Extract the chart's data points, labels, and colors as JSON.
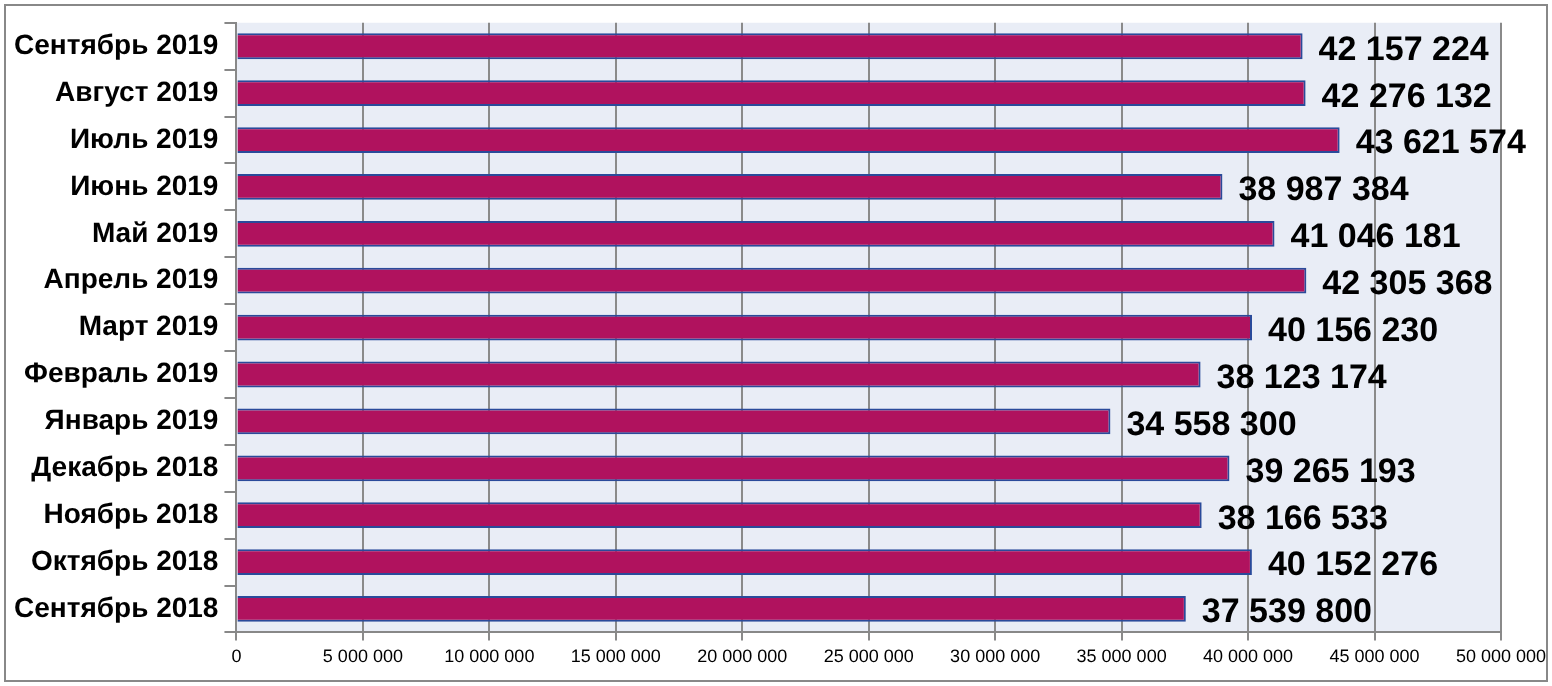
{
  "chart_data": {
    "type": "bar",
    "orientation": "horizontal",
    "categories": [
      "Сентябрь 2019",
      "Август 2019",
      "Июль 2019",
      "Июнь 2019",
      "Май 2019",
      "Апрель 2019",
      "Март 2019",
      "Февраль 2019",
      "Январь 2019",
      "Декабрь 2018",
      "Ноябрь 2018",
      "Октябрь 2018",
      "Сентябрь 2018"
    ],
    "values": [
      42157224,
      42276132,
      43621574,
      38987384,
      41046181,
      42305368,
      40156230,
      38123174,
      34558300,
      39265193,
      38166533,
      40152276,
      37539800
    ],
    "value_labels": [
      "42 157 224",
      "42 276 132",
      "43 621 574",
      "38 987 384",
      "41 046 181",
      "42 305 368",
      "40 156 230",
      "38 123 174",
      "34 558 300",
      "39 265 193",
      "38 166 533",
      "40 152 276",
      "37 539 800"
    ],
    "color": "#b0125e",
    "xlim": [
      0,
      50000000
    ],
    "xticks": [
      {
        "value": 0,
        "label": "0"
      },
      {
        "value": 5000000,
        "label": "5 000 000"
      },
      {
        "value": 10000000,
        "label": "10 000 000"
      },
      {
        "value": 15000000,
        "label": "15 000 000"
      },
      {
        "value": 20000000,
        "label": "20 000 000"
      },
      {
        "value": 25000000,
        "label": "25 000 000"
      },
      {
        "value": 30000000,
        "label": "30 000 000"
      },
      {
        "value": 35000000,
        "label": "35 000 000"
      },
      {
        "value": 40000000,
        "label": "40 000 000"
      },
      {
        "value": 45000000,
        "label": "45 000 000"
      },
      {
        "value": 50000000,
        "label": "50 000 000"
      }
    ],
    "grid": "x",
    "legend": false
  }
}
